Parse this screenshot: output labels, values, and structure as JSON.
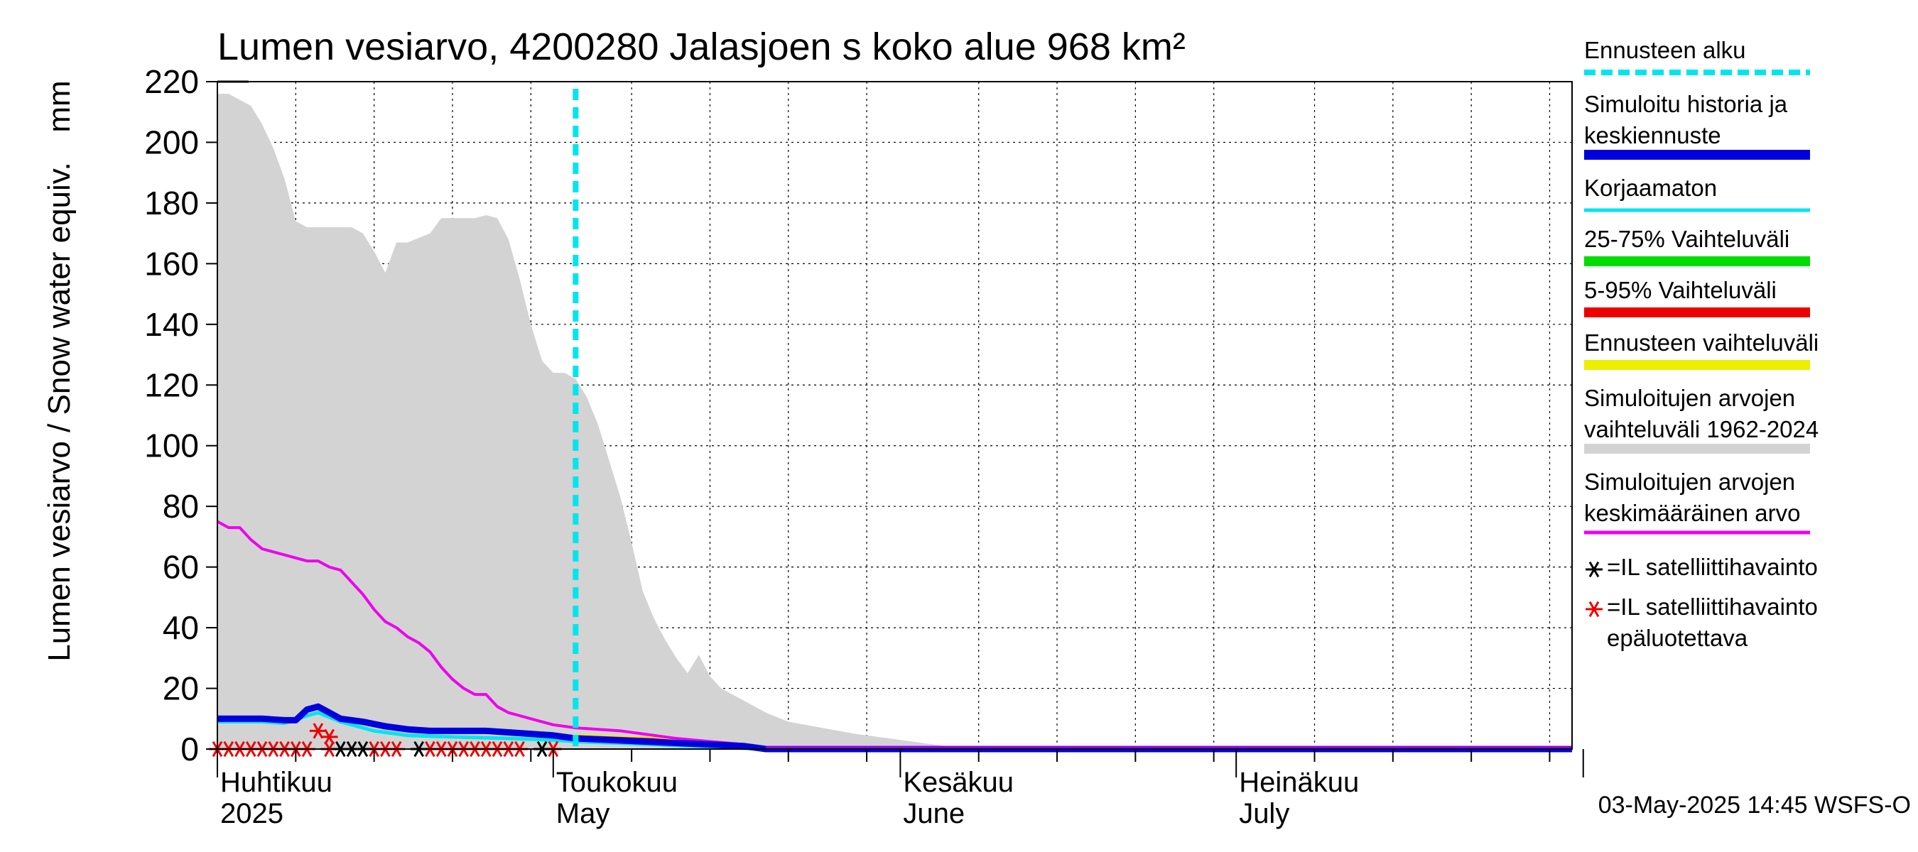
{
  "chart_data": {
    "type": "area",
    "title": "Lumen vesiarvo, 4200280 Jalasjoen s koko alue 968 km²",
    "ylabel": "Lumen vesiarvo / Snow water equiv.",
    "yunit": "mm",
    "ylim": [
      0,
      220
    ],
    "yticks": [
      0,
      20,
      40,
      60,
      80,
      100,
      120,
      140,
      160,
      180,
      200,
      220
    ],
    "xlim": [
      "2025-04-01",
      "2025-07-31"
    ],
    "grid": true,
    "legend_position": "right",
    "month_labels": [
      {
        "date": "2025-04-01",
        "fi": "Huhtikuu",
        "en": "2025"
      },
      {
        "date": "2025-05-01",
        "fi": "Toukokuu",
        "en": "May"
      },
      {
        "date": "2025-06-01",
        "fi": "Kesäkuu",
        "en": "June"
      },
      {
        "date": "2025-07-01",
        "fi": "Heinäkuu",
        "en": "July"
      }
    ],
    "forecast_start": "2025-05-03",
    "range_1962_2024": {
      "x": [
        "2025-04-01",
        "2025-04-02",
        "2025-04-03",
        "2025-04-04",
        "2025-04-05",
        "2025-04-06",
        "2025-04-07",
        "2025-04-08",
        "2025-04-09",
        "2025-04-10",
        "2025-04-12",
        "2025-04-13",
        "2025-04-14",
        "2025-04-15",
        "2025-04-16",
        "2025-04-17",
        "2025-04-18",
        "2025-04-20",
        "2025-04-21",
        "2025-04-22",
        "2025-04-23",
        "2025-04-24",
        "2025-04-25",
        "2025-04-26",
        "2025-04-27",
        "2025-04-28",
        "2025-04-29",
        "2025-04-30",
        "2025-05-01",
        "2025-05-02",
        "2025-05-03",
        "2025-05-04",
        "2025-05-05",
        "2025-05-06",
        "2025-05-07",
        "2025-05-08",
        "2025-05-09",
        "2025-05-10",
        "2025-05-11",
        "2025-05-12",
        "2025-05-13",
        "2025-05-14",
        "2025-05-15",
        "2025-05-16",
        "2025-05-17",
        "2025-05-18",
        "2025-05-19",
        "2025-05-20",
        "2025-05-22",
        "2025-05-25",
        "2025-05-28",
        "2025-06-01",
        "2025-06-05",
        "2025-06-07",
        "2025-06-09"
      ],
      "upper": [
        216,
        216,
        214,
        212,
        206,
        198,
        188,
        174,
        172,
        172,
        172,
        172,
        170,
        164,
        157,
        167,
        167,
        170,
        175,
        175,
        175,
        175,
        176,
        175,
        168,
        155,
        140,
        128,
        124,
        124,
        122,
        116,
        107,
        95,
        83,
        68,
        52,
        43,
        36,
        30,
        25,
        31,
        24,
        20,
        18,
        16,
        14,
        12,
        9,
        7,
        5,
        3,
        1,
        0.5,
        0
      ],
      "lower": 0
    },
    "series": [
      {
        "name": "Simuloitujen arvojen keskimääräinen arvo",
        "color": "#ee00ee",
        "x": [
          "2025-04-01",
          "2025-04-02",
          "2025-04-03",
          "2025-04-04",
          "2025-04-05",
          "2025-04-06",
          "2025-04-07",
          "2025-04-08",
          "2025-04-09",
          "2025-04-10",
          "2025-04-11",
          "2025-04-12",
          "2025-04-13",
          "2025-04-14",
          "2025-04-15",
          "2025-04-16",
          "2025-04-17",
          "2025-04-18",
          "2025-04-19",
          "2025-04-20",
          "2025-04-21",
          "2025-04-22",
          "2025-04-23",
          "2025-04-24",
          "2025-04-25",
          "2025-04-26",
          "2025-04-27",
          "2025-04-28",
          "2025-04-29",
          "2025-04-30",
          "2025-05-01",
          "2025-05-03",
          "2025-05-05",
          "2025-05-07",
          "2025-05-09",
          "2025-05-12",
          "2025-05-15",
          "2025-05-18",
          "2025-05-20",
          "2025-05-23",
          "2025-06-01",
          "2025-07-31"
        ],
        "values": [
          75,
          73,
          73,
          69,
          66,
          65,
          64,
          63,
          62,
          62,
          60,
          59,
          55,
          51,
          46,
          42,
          40,
          37,
          35,
          32,
          27,
          23,
          20,
          18,
          18,
          14,
          12,
          11,
          10,
          9,
          8,
          7,
          6.5,
          6,
          5,
          3.5,
          2.5,
          1.5,
          0.5,
          0,
          0,
          0
        ]
      },
      {
        "name": "Simuloitu historia ja keskiennuste",
        "color": "#0000dd",
        "x": [
          "2025-04-01",
          "2025-04-03",
          "2025-04-05",
          "2025-04-07",
          "2025-04-08",
          "2025-04-09",
          "2025-04-10",
          "2025-04-11",
          "2025-04-12",
          "2025-04-14",
          "2025-04-16",
          "2025-04-18",
          "2025-04-20",
          "2025-04-22",
          "2025-04-25",
          "2025-04-27",
          "2025-04-29",
          "2025-05-01",
          "2025-05-03",
          "2025-05-06",
          "2025-05-09",
          "2025-05-12",
          "2025-05-15",
          "2025-05-18",
          "2025-05-20",
          "2025-06-01",
          "2025-07-31"
        ],
        "values": [
          10,
          10,
          10,
          9.5,
          9.5,
          13,
          14,
          12,
          10,
          9,
          7.5,
          6.5,
          6,
          6,
          6,
          5.5,
          5,
          4.5,
          3.5,
          3,
          2.5,
          2,
          1.5,
          1,
          0,
          0,
          0
        ]
      },
      {
        "name": "Korjaamaton",
        "color": "#00e5ee",
        "x": [
          "2025-04-01",
          "2025-04-05",
          "2025-04-07",
          "2025-04-09",
          "2025-04-10",
          "2025-04-12",
          "2025-04-15",
          "2025-04-18",
          "2025-04-22",
          "2025-04-27",
          "2025-05-01",
          "2025-05-03",
          "2025-05-10",
          "2025-05-20",
          "2025-06-01",
          "2025-07-31"
        ],
        "values": [
          9,
          9,
          8.5,
          11,
          12,
          9,
          6,
          4.5,
          4,
          3.5,
          3,
          2.5,
          1.5,
          0,
          0,
          0
        ]
      },
      {
        "name": "25-75% Vaihteluväli",
        "color": "#00dd00",
        "x": [
          "2025-05-03",
          "2025-05-10",
          "2025-05-20",
          "2025-07-31"
        ],
        "values": [
          3,
          2,
          0,
          0
        ]
      },
      {
        "name": "5-95% Vaihteluväli",
        "color": "#ee0000",
        "x": [
          "2025-05-03",
          "2025-05-10",
          "2025-05-20",
          "2025-07-31"
        ],
        "values": [
          4,
          3,
          0,
          0
        ]
      },
      {
        "name": "Ennusteen vaihteluväli",
        "color": "#eeee00",
        "x": [
          "2025-05-03",
          "2025-05-10",
          "2025-05-20",
          "2025-07-31"
        ],
        "values": [
          4.5,
          3.5,
          0,
          0
        ]
      }
    ],
    "satellite_reliable": [
      "2025-04-12",
      "2025-04-13",
      "2025-04-14",
      "2025-04-19",
      "2025-04-30"
    ],
    "satellite_unreliable": [
      "2025-04-01",
      "2025-04-02",
      "2025-04-03",
      "2025-04-04",
      "2025-04-05",
      "2025-04-06",
      "2025-04-07",
      "2025-04-08",
      "2025-04-09",
      "2025-04-11",
      "2025-04-15",
      "2025-04-16",
      "2025-04-17",
      "2025-04-20",
      "2025-04-21",
      "2025-04-22",
      "2025-04-23",
      "2025-04-24",
      "2025-04-25",
      "2025-04-26",
      "2025-04-27",
      "2025-04-28",
      "2025-05-01"
    ],
    "satellite_unreliable_high": [
      {
        "date": "2025-04-10",
        "value": 6
      },
      {
        "date": "2025-04-11",
        "value": 4
      }
    ],
    "legend": [
      {
        "label": "Ennusteen alku",
        "color": "#00e5ee",
        "style": "dashed"
      },
      {
        "label": "Simuloitu historia ja keskiennuste",
        "color": "#0000dd",
        "style": "thick"
      },
      {
        "label": "Korjaamaton",
        "color": "#00e5ee",
        "style": "line"
      },
      {
        "label": "25-75% Vaihteluväli",
        "color": "#00dd00",
        "style": "thick"
      },
      {
        "label": "5-95% Vaihteluväli",
        "color": "#ee0000",
        "style": "thick"
      },
      {
        "label": "Ennusteen vaihteluväli",
        "color": "#eeee00",
        "style": "thick"
      },
      {
        "label": "Simuloitujen arvojen vaihteluväli 1962-2024",
        "color": "#d3d3d3",
        "style": "thick"
      },
      {
        "label": "Simuloitujen arvojen keskimääräinen arvo",
        "color": "#ee00ee",
        "style": "line"
      },
      {
        "label": "=IL satelliittihavainto",
        "color": "#000000",
        "style": "marker"
      },
      {
        "label": "=IL satelliittihavainto epäluotettava",
        "color": "#ee0000",
        "style": "marker"
      }
    ],
    "footer": "03-May-2025 14:45 WSFS-O"
  }
}
